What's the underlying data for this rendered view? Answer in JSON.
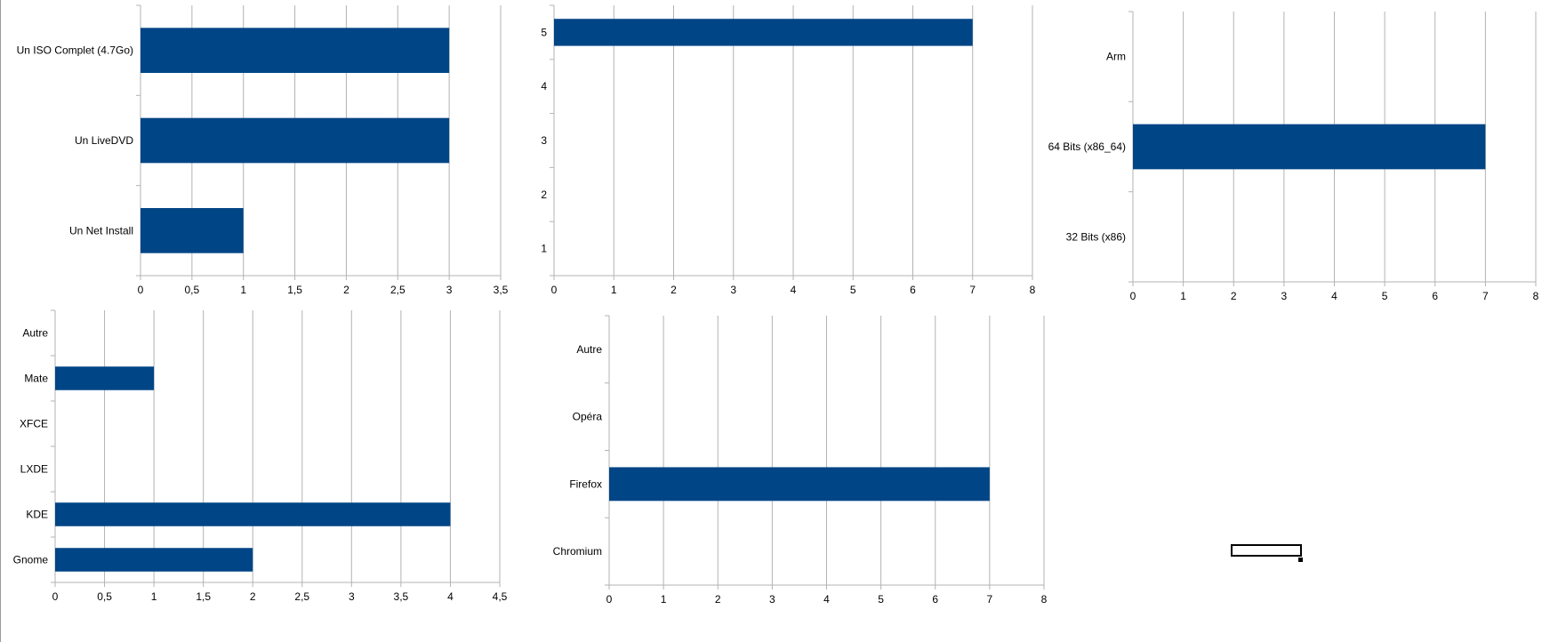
{
  "chart_data": [
    {
      "type": "bar",
      "orientation": "horizontal",
      "categories": [
        "Un ISO Complet (4.7Go)",
        "Un LiveDVD",
        "Un Net Install"
      ],
      "values": [
        3,
        3,
        1
      ],
      "xlim": [
        0,
        3.5
      ],
      "xticks": [
        "0",
        "0,5",
        "1",
        "1,5",
        "2",
        "2,5",
        "3",
        "3,5"
      ],
      "grid": true,
      "color": "#004586"
    },
    {
      "type": "bar",
      "orientation": "horizontal",
      "categories": [
        "5",
        "4",
        "3",
        "2",
        "1"
      ],
      "values": [
        7,
        0,
        0,
        0,
        0
      ],
      "xlim": [
        0,
        8
      ],
      "xticks": [
        "0",
        "1",
        "2",
        "3",
        "4",
        "5",
        "6",
        "7",
        "8"
      ],
      "grid": true,
      "color": "#004586"
    },
    {
      "type": "bar",
      "orientation": "horizontal",
      "categories": [
        "Arm",
        "64 Bits (x86_64)",
        "32 Bits (x86)"
      ],
      "values": [
        0,
        7,
        0
      ],
      "xlim": [
        0,
        8
      ],
      "xticks": [
        "0",
        "1",
        "2",
        "3",
        "4",
        "5",
        "6",
        "7",
        "8"
      ],
      "grid": true,
      "color": "#004586"
    },
    {
      "type": "bar",
      "orientation": "horizontal",
      "categories": [
        "Autre",
        "Mate",
        "XFCE",
        "LXDE",
        "KDE",
        "Gnome"
      ],
      "values": [
        0,
        1,
        0,
        0,
        4,
        2
      ],
      "xlim": [
        0,
        4.5
      ],
      "xticks": [
        "0",
        "0,5",
        "1",
        "1,5",
        "2",
        "2,5",
        "3",
        "3,5",
        "4",
        "4,5"
      ],
      "grid": true,
      "color": "#004586"
    },
    {
      "type": "bar",
      "orientation": "horizontal",
      "categories": [
        "Autre",
        "Opéra",
        "Firefox",
        "Chromium"
      ],
      "values": [
        0,
        0,
        7,
        0
      ],
      "xlim": [
        0,
        8
      ],
      "xticks": [
        "0",
        "1",
        "2",
        "3",
        "4",
        "5",
        "6",
        "7",
        "8"
      ],
      "grid": true,
      "color": "#004586"
    }
  ]
}
